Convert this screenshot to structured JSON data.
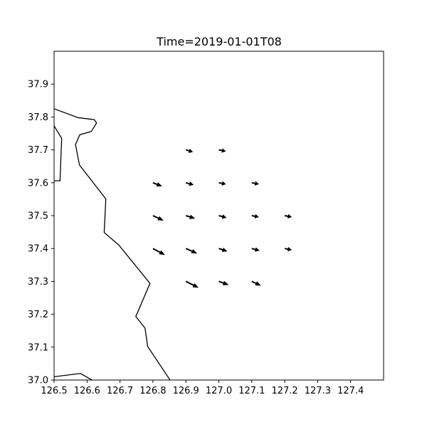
{
  "chart_data": {
    "type": "quiver",
    "title": "Time=2019-01-01T08",
    "xlabel": "",
    "ylabel": "",
    "xlim": [
      126.5,
      127.5
    ],
    "ylim": [
      37.0,
      38.0
    ],
    "x_ticks": [
      "126.5",
      "126.6",
      "126.7",
      "126.8",
      "126.9",
      "127.0",
      "127.1",
      "127.2",
      "127.3",
      "127.4"
    ],
    "y_ticks": [
      "37.0",
      "37.1",
      "37.2",
      "37.3",
      "37.4",
      "37.5",
      "37.6",
      "37.7",
      "37.8",
      "37.9"
    ],
    "grid": false,
    "arrow_color": "#000000",
    "vectors": [
      {
        "lon": 126.9,
        "lat": 37.7,
        "u": 1.0,
        "v": -0.3
      },
      {
        "lon": 127.0,
        "lat": 37.7,
        "u": 1.0,
        "v": -0.2
      },
      {
        "lon": 126.8,
        "lat": 37.6,
        "u": 1.3,
        "v": -0.5
      },
      {
        "lon": 126.9,
        "lat": 37.6,
        "u": 1.1,
        "v": -0.3
      },
      {
        "lon": 127.0,
        "lat": 37.6,
        "u": 1.0,
        "v": -0.2
      },
      {
        "lon": 127.1,
        "lat": 37.6,
        "u": 1.0,
        "v": -0.2
      },
      {
        "lon": 126.8,
        "lat": 37.5,
        "u": 1.5,
        "v": -0.7
      },
      {
        "lon": 126.9,
        "lat": 37.5,
        "u": 1.3,
        "v": -0.4
      },
      {
        "lon": 127.0,
        "lat": 37.5,
        "u": 1.1,
        "v": -0.3
      },
      {
        "lon": 127.1,
        "lat": 37.5,
        "u": 1.0,
        "v": -0.2
      },
      {
        "lon": 127.2,
        "lat": 37.5,
        "u": 1.0,
        "v": -0.2
      },
      {
        "lon": 126.8,
        "lat": 37.4,
        "u": 1.7,
        "v": -0.9
      },
      {
        "lon": 126.9,
        "lat": 37.4,
        "u": 1.6,
        "v": -0.7
      },
      {
        "lon": 127.0,
        "lat": 37.4,
        "u": 1.2,
        "v": -0.4
      },
      {
        "lon": 127.1,
        "lat": 37.4,
        "u": 1.1,
        "v": -0.3
      },
      {
        "lon": 127.2,
        "lat": 37.4,
        "u": 1.0,
        "v": -0.2
      },
      {
        "lon": 126.9,
        "lat": 37.3,
        "u": 1.8,
        "v": -0.9
      },
      {
        "lon": 127.0,
        "lat": 37.3,
        "u": 1.4,
        "v": -0.5
      },
      {
        "lon": 127.1,
        "lat": 37.3,
        "u": 1.3,
        "v": -0.6
      }
    ],
    "coastlines": [
      [
        [
          126.5,
          37.825
        ],
        [
          126.573,
          37.798
        ],
        [
          126.622,
          37.792
        ],
        [
          126.629,
          37.782
        ],
        [
          126.613,
          37.756
        ],
        [
          126.578,
          37.746
        ],
        [
          126.565,
          37.716
        ],
        [
          126.577,
          37.654
        ],
        [
          126.657,
          37.551
        ],
        [
          126.652,
          37.449
        ],
        [
          126.697,
          37.41
        ],
        [
          126.791,
          37.294
        ],
        [
          126.748,
          37.193
        ],
        [
          126.776,
          37.158
        ],
        [
          126.784,
          37.102
        ],
        [
          126.852,
          37.0
        ]
      ],
      [
        [
          126.5,
          37.773
        ],
        [
          126.523,
          37.735
        ],
        [
          126.518,
          37.606
        ],
        [
          126.5,
          37.606
        ]
      ],
      [
        [
          126.5,
          37.01
        ],
        [
          126.58,
          37.02
        ],
        [
          126.615,
          37.0
        ]
      ]
    ]
  }
}
